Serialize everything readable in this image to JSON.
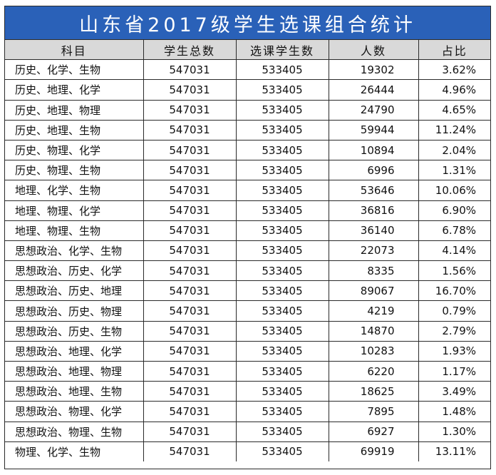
{
  "title": "山东省2017级学生选课组合统计",
  "headers": [
    "科目",
    "学生总数",
    "选课学生数",
    "人数",
    "占比"
  ],
  "rows": [
    {
      "subjects": "历史、化学、生物",
      "total": "547031",
      "selected": "533405",
      "count": "19302",
      "ratio": "3.62%"
    },
    {
      "subjects": "历史、地理、化学",
      "total": "547031",
      "selected": "533405",
      "count": "26444",
      "ratio": "4.96%"
    },
    {
      "subjects": "历史、地理、物理",
      "total": "547031",
      "selected": "533405",
      "count": "24790",
      "ratio": "4.65%"
    },
    {
      "subjects": "历史、地理、生物",
      "total": "547031",
      "selected": "533405",
      "count": "59944",
      "ratio": "11.24%"
    },
    {
      "subjects": "历史、物理、化学",
      "total": "547031",
      "selected": "533405",
      "count": "10894",
      "ratio": "2.04%"
    },
    {
      "subjects": "历史、物理、生物",
      "total": "547031",
      "selected": "533405",
      "count": "6996",
      "ratio": "1.31%"
    },
    {
      "subjects": "地理、化学、生物",
      "total": "547031",
      "selected": "533405",
      "count": "53646",
      "ratio": "10.06%"
    },
    {
      "subjects": "地理、物理、化学",
      "total": "547031",
      "selected": "533405",
      "count": "36816",
      "ratio": "6.90%"
    },
    {
      "subjects": "地理、物理、生物",
      "total": "547031",
      "selected": "533405",
      "count": "36140",
      "ratio": "6.78%"
    },
    {
      "subjects": "思想政治、化学、生物",
      "total": "547031",
      "selected": "533405",
      "count": "22073",
      "ratio": "4.14%"
    },
    {
      "subjects": "思想政治、历史、化学",
      "total": "547031",
      "selected": "533405",
      "count": "8335",
      "ratio": "1.56%"
    },
    {
      "subjects": "思想政治、历史、地理",
      "total": "547031",
      "selected": "533405",
      "count": "89067",
      "ratio": "16.70%"
    },
    {
      "subjects": "思想政治、历史、物理",
      "total": "547031",
      "selected": "533405",
      "count": "4219",
      "ratio": "0.79%"
    },
    {
      "subjects": "思想政治、历史、生物",
      "total": "547031",
      "selected": "533405",
      "count": "14870",
      "ratio": "2.79%"
    },
    {
      "subjects": "思想政治、地理、化学",
      "total": "547031",
      "selected": "533405",
      "count": "10283",
      "ratio": "1.93%"
    },
    {
      "subjects": "思想政治、地理、物理",
      "total": "547031",
      "selected": "533405",
      "count": "6220",
      "ratio": "1.17%"
    },
    {
      "subjects": "思想政治、地理、生物",
      "total": "547031",
      "selected": "533405",
      "count": "18625",
      "ratio": "3.49%"
    },
    {
      "subjects": "思想政治、物理、化学",
      "total": "547031",
      "selected": "533405",
      "count": "7895",
      "ratio": "1.48%"
    },
    {
      "subjects": "思想政治、物理、生物",
      "total": "547031",
      "selected": "533405",
      "count": "6927",
      "ratio": "1.30%"
    },
    {
      "subjects": "物理、化学、生物",
      "total": "547031",
      "selected": "533405",
      "count": "69919",
      "ratio": "13.11%"
    }
  ],
  "colors": {
    "title_background": "#2a61b8",
    "title_text": "#ffffff",
    "header_background": "#d9d9d9",
    "border": "#2a2a2a"
  }
}
